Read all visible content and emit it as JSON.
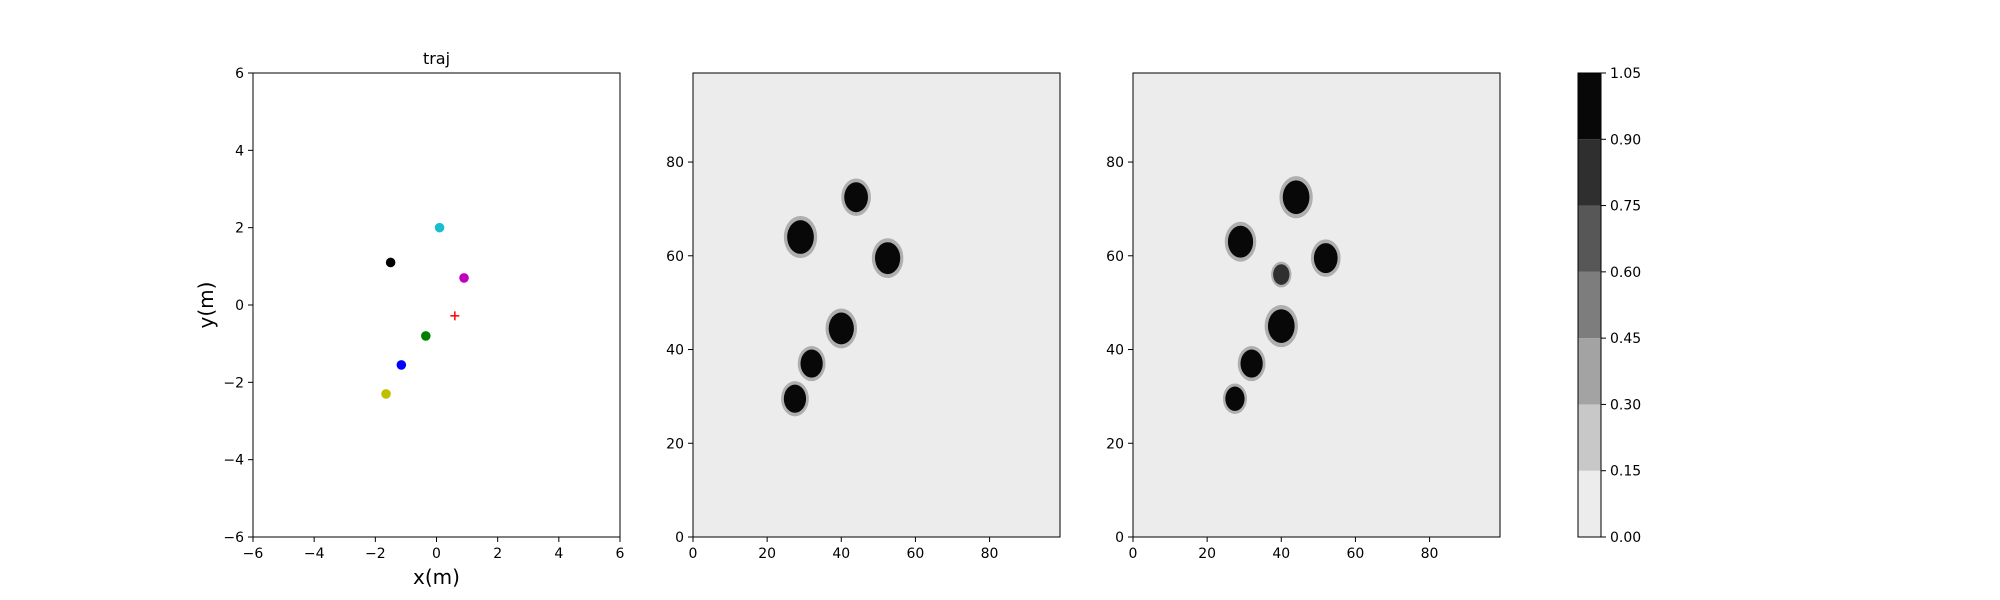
{
  "chart_data": [
    {
      "type": "scatter",
      "title": "traj",
      "xlabel": "x(m)",
      "ylabel": "y(m)",
      "xlim": [
        -6,
        6
      ],
      "ylim": [
        -6,
        6
      ],
      "xticks": [
        "−6",
        "−4",
        "−2",
        "0",
        "2",
        "4",
        "6"
      ],
      "yticks": [
        "−6",
        "−4",
        "−2",
        "0",
        "2",
        "4",
        "6"
      ],
      "grid": false,
      "points": [
        {
          "x": 0.1,
          "y": 2.0,
          "color": "#17becf",
          "marker": "circle"
        },
        {
          "x": -1.5,
          "y": 1.1,
          "color": "#000000",
          "marker": "circle"
        },
        {
          "x": 0.9,
          "y": 0.7,
          "color": "#c000c0",
          "marker": "circle"
        },
        {
          "x": -0.35,
          "y": -0.8,
          "color": "#007f00",
          "marker": "circle"
        },
        {
          "x": -1.15,
          "y": -1.55,
          "color": "#0000ff",
          "marker": "circle"
        },
        {
          "x": -1.65,
          "y": -2.3,
          "color": "#bfbf00",
          "marker": "circle"
        },
        {
          "x": 0.6,
          "y": -0.28,
          "color": "#ff0000",
          "marker": "plus"
        }
      ]
    },
    {
      "type": "heatmap",
      "title": "",
      "xlim": [
        0,
        99
      ],
      "ylim": [
        0,
        99
      ],
      "xticks": [
        "0",
        "20",
        "40",
        "60",
        "80"
      ],
      "yticks": [
        "0",
        "20",
        "40",
        "60",
        "80"
      ],
      "background_value": 0.05,
      "blobs": [
        {
          "cx": 44,
          "cy": 72.5,
          "r": 3.2,
          "value": 1.0
        },
        {
          "cx": 29,
          "cy": 64,
          "r": 3.6,
          "value": 1.0
        },
        {
          "cx": 52.5,
          "cy": 59.5,
          "r": 3.4,
          "value": 1.0
        },
        {
          "cx": 40,
          "cy": 44.5,
          "r": 3.4,
          "value": 1.0
        },
        {
          "cx": 32,
          "cy": 37,
          "r": 3.0,
          "value": 1.0
        },
        {
          "cx": 27.5,
          "cy": 29.5,
          "r": 3.0,
          "value": 1.0
        }
      ]
    },
    {
      "type": "heatmap",
      "title": "",
      "xlim": [
        0,
        99
      ],
      "ylim": [
        0,
        99
      ],
      "xticks": [
        "0",
        "20",
        "40",
        "60",
        "80"
      ],
      "yticks": [
        "0",
        "20",
        "40",
        "60",
        "80"
      ],
      "background_value": 0.05,
      "blobs": [
        {
          "cx": 44,
          "cy": 72.5,
          "r": 3.6,
          "value": 1.0
        },
        {
          "cx": 29,
          "cy": 63,
          "r": 3.4,
          "value": 1.0
        },
        {
          "cx": 52,
          "cy": 59.5,
          "r": 3.2,
          "value": 1.0
        },
        {
          "cx": 40,
          "cy": 56,
          "r": 2.2,
          "value": 0.85
        },
        {
          "cx": 40,
          "cy": 45,
          "r": 3.6,
          "value": 1.0
        },
        {
          "cx": 32,
          "cy": 37,
          "r": 3.0,
          "value": 1.0
        },
        {
          "cx": 27.5,
          "cy": 29.5,
          "r": 2.6,
          "value": 1.0
        }
      ]
    }
  ],
  "colorbar": {
    "levels": [
      0.0,
      0.15,
      0.3,
      0.45,
      0.6,
      0.75,
      0.9,
      1.05
    ],
    "tick_labels": [
      "0.00",
      "0.15",
      "0.30",
      "0.45",
      "0.60",
      "0.75",
      "0.90",
      "1.05"
    ],
    "band_colors": [
      "#ececec",
      "#c8c8c8",
      "#a3a3a3",
      "#7d7d7d",
      "#575757",
      "#2f2f2f",
      "#080808"
    ]
  }
}
